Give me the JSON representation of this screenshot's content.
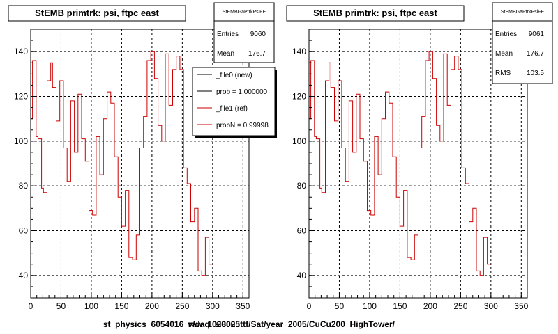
{
  "chart_data": [
    {
      "type": "line",
      "title": "StEMB primtrk: psi, ftpc east",
      "xlim": [
        0,
        360
      ],
      "ylim": [
        30,
        150
      ],
      "xticks": [
        "0",
        "50",
        "100",
        "150",
        "200",
        "250",
        "300",
        "350"
      ],
      "yticks": [
        "40",
        "60",
        "80",
        "100",
        "120",
        "140"
      ],
      "grid": true,
      "footer": "st_physics_6054016_raw_1020005",
      "stats": {
        "header": "StEMBGaPtrkPsiFE",
        "rows": [
          {
            "label": "Entries",
            "value": "9060"
          },
          {
            "label": "Mean",
            "value": "176.7"
          }
        ]
      },
      "legend": [
        {
          "label": "_file0 (new)",
          "color": "#000000"
        },
        {
          "label": "prob = 1.000000",
          "color": "#000000"
        },
        {
          "label": "_file1 (ref)",
          "color": "#cc0000"
        },
        {
          "label": "probN = 0.99998",
          "color": "#cc0000"
        }
      ],
      "series": [
        {
          "name": "_file1 (ref)",
          "color": "#cc0000",
          "bin_width": 3,
          "values": [
            110,
            136,
            136,
            102,
            101,
            101,
            79,
            77,
            77,
            127,
            127,
            135,
            124,
            124,
            109,
            109,
            127,
            127,
            97,
            97,
            82,
            82,
            118,
            118,
            95,
            95,
            121,
            121,
            101,
            101,
            91,
            91,
            69,
            69,
            67,
            67,
            102,
            102,
            85,
            85,
            110,
            110,
            122,
            122,
            117,
            117,
            93,
            93,
            75,
            75,
            62,
            62,
            78,
            78,
            48,
            48,
            47,
            47,
            58,
            58,
            97,
            97,
            111,
            111,
            136,
            136,
            140,
            140,
            128,
            128,
            107,
            107,
            100,
            100,
            139,
            139,
            116,
            116,
            132,
            132,
            138,
            138,
            132,
            132,
            88,
            88,
            81,
            81,
            64,
            64,
            70,
            70,
            42,
            42,
            40,
            40,
            57,
            57,
            45,
            45
          ]
        }
      ]
    },
    {
      "type": "line",
      "title": "StEMB primtrk: psi, ftpc east",
      "xlim": [
        0,
        360
      ],
      "ylim": [
        30,
        150
      ],
      "xticks": [
        "0",
        "50",
        "100",
        "150",
        "200",
        "250",
        "300",
        "350"
      ],
      "yticks": [
        "40",
        "60",
        "80",
        "100",
        "120",
        "140"
      ],
      "grid": true,
      "footer": "v/daq_sl302.ittf/Sat/year_2005/CuCu200_HighTower/",
      "stats": {
        "header": "StEMBGaPtrkPsiFE",
        "rows": [
          {
            "label": "Entries",
            "value": "9061"
          },
          {
            "label": "Mean",
            "value": "176.7"
          },
          {
            "label": "RMS",
            "value": "103.5"
          }
        ]
      },
      "legend": [],
      "series": [
        {
          "name": "",
          "color": "#cc0000",
          "bin_width": 3,
          "values": [
            110,
            136,
            136,
            102,
            101,
            101,
            79,
            77,
            77,
            127,
            127,
            135,
            124,
            124,
            109,
            109,
            127,
            127,
            97,
            97,
            82,
            82,
            118,
            118,
            95,
            95,
            121,
            121,
            101,
            101,
            91,
            91,
            69,
            69,
            67,
            67,
            102,
            102,
            85,
            85,
            110,
            110,
            122,
            122,
            117,
            117,
            93,
            93,
            75,
            75,
            62,
            62,
            78,
            78,
            48,
            48,
            47,
            47,
            58,
            58,
            97,
            97,
            111,
            111,
            136,
            136,
            140,
            140,
            128,
            128,
            107,
            107,
            100,
            100,
            139,
            139,
            116,
            116,
            132,
            132,
            138,
            138,
            132,
            132,
            88,
            88,
            81,
            81,
            64,
            64,
            70,
            70,
            42,
            42,
            40,
            40,
            57,
            57,
            45,
            45
          ]
        }
      ]
    }
  ],
  "corner_text": "..."
}
